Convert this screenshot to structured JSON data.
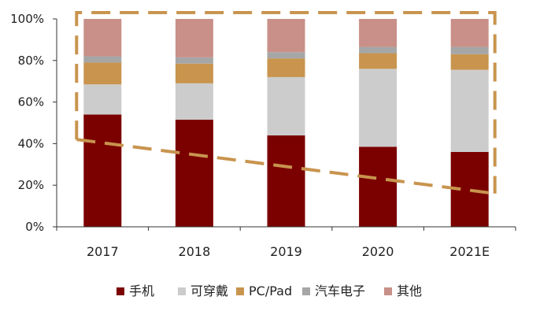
{
  "chart_data": {
    "type": "bar",
    "stacked": true,
    "categories": [
      "2017",
      "2018",
      "2019",
      "2020",
      "2021E"
    ],
    "series": [
      {
        "name": "手机",
        "color": "#7b0000",
        "values": [
          54,
          51.5,
          44,
          38.5,
          36
        ]
      },
      {
        "name": "可穿戴",
        "color": "#cccccc",
        "values": [
          14.5,
          17.5,
          28,
          37.5,
          39.5
        ]
      },
      {
        "name": "PC/Pad",
        "color": "#c8944e",
        "values": [
          10.5,
          9.5,
          9,
          7.5,
          7.5
        ]
      },
      {
        "name": "汽车电子",
        "color": "#a6a6a6",
        "values": [
          3,
          3,
          3,
          3,
          3.5
        ]
      },
      {
        "name": "其他",
        "color": "#c89088",
        "values": [
          18,
          18.5,
          16,
          13.5,
          13.5
        ]
      }
    ],
    "ylim": [
      0,
      100
    ],
    "yticks": [
      "0%",
      "20%",
      "40%",
      "60%",
      "80%",
      "100%"
    ],
    "annotations": [
      {
        "type": "dashed-box",
        "color": "#c8944e"
      },
      {
        "type": "dashed-trend-line",
        "from_category": "2017",
        "to_category": "2021E",
        "from_value": 42,
        "to_value": 16,
        "color": "#c8944e"
      }
    ]
  }
}
